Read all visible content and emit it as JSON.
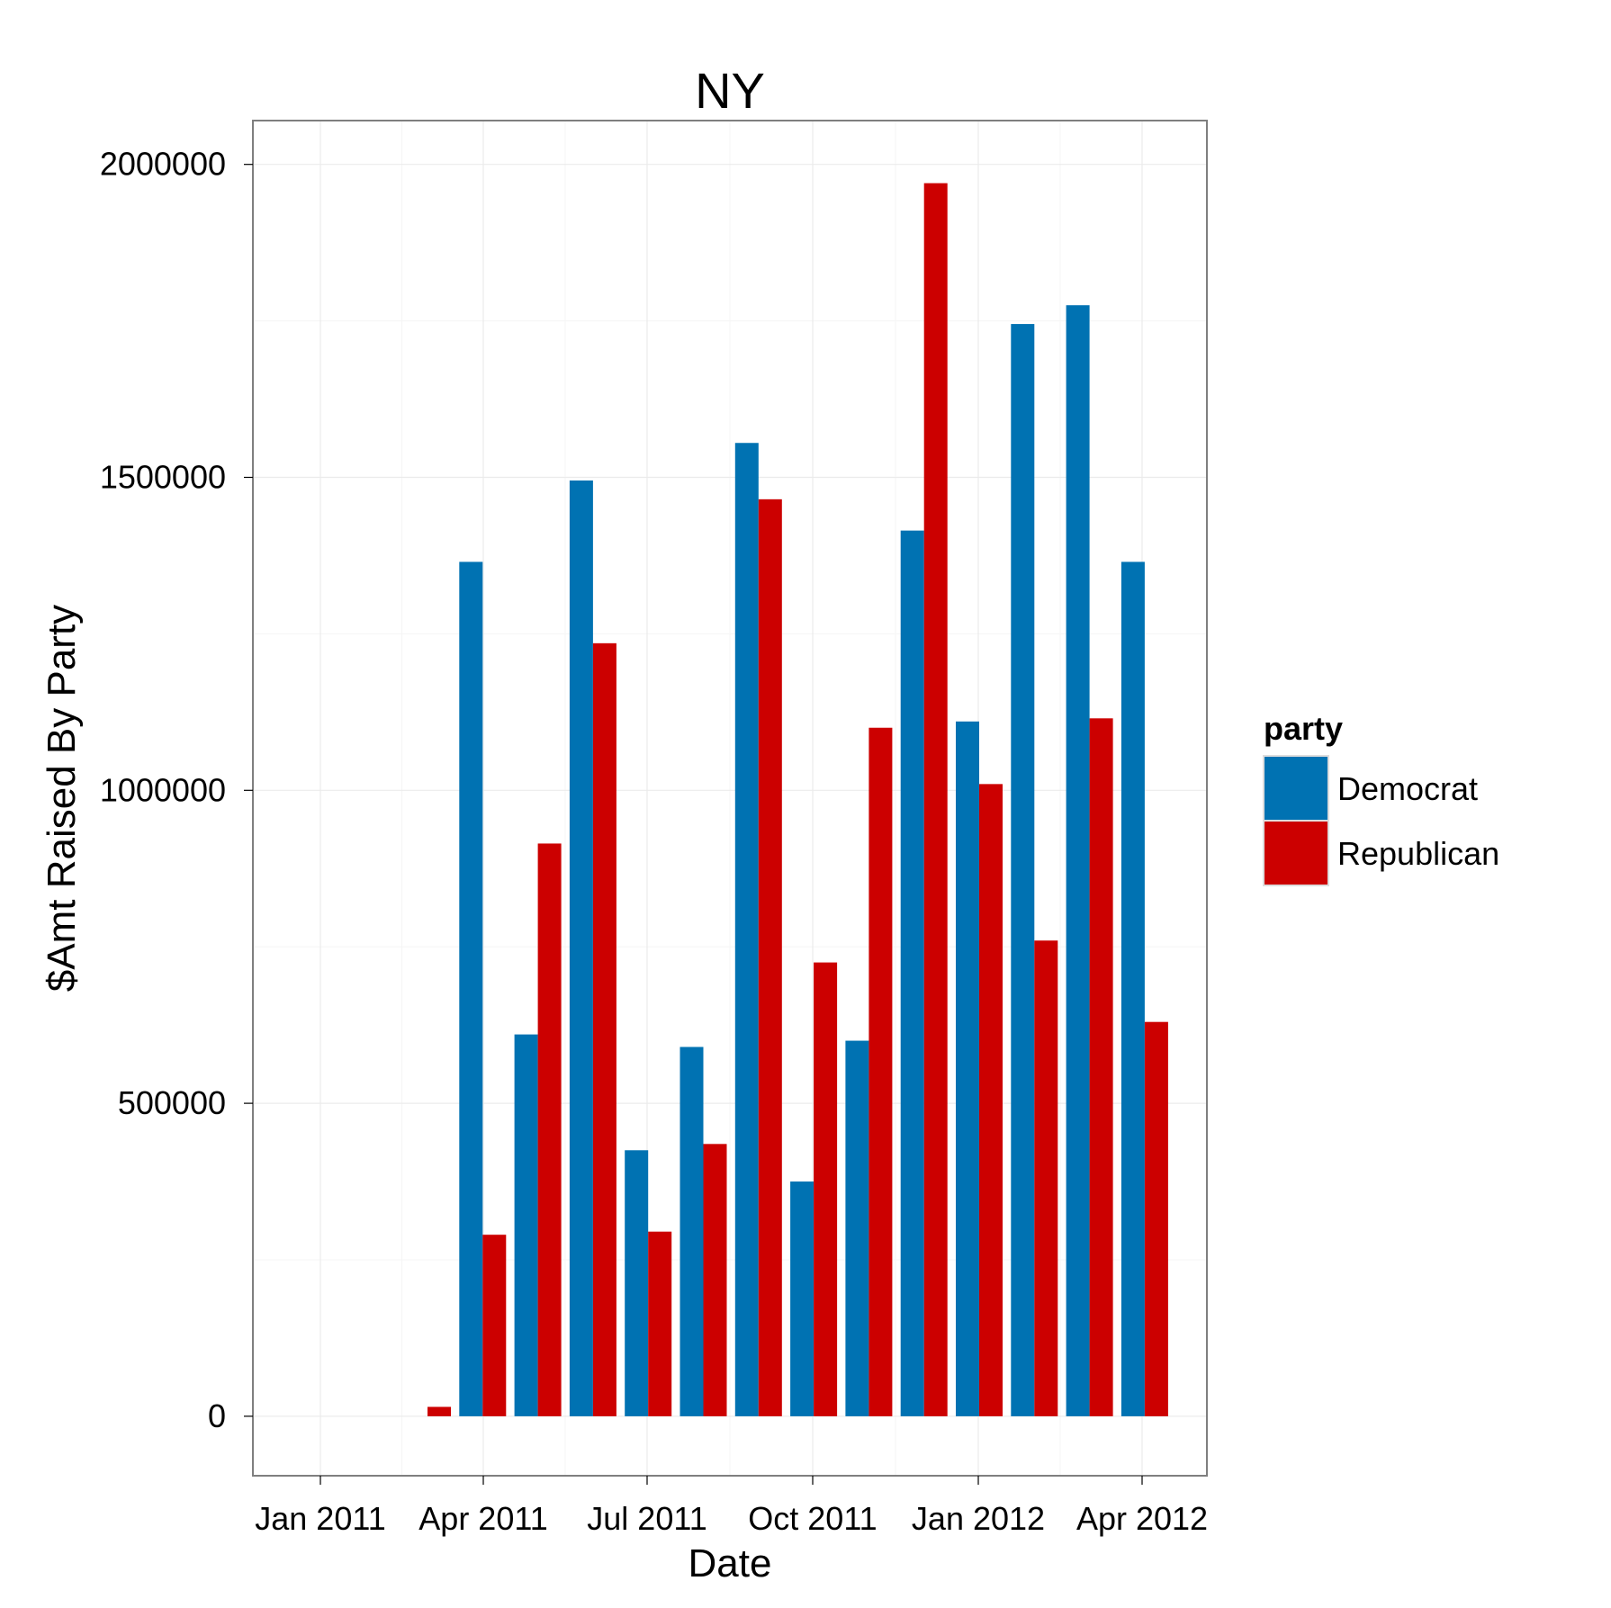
{
  "chart_data": {
    "type": "bar",
    "title": "NY",
    "xlabel": "Date",
    "ylabel": "$Amt Raised By Party",
    "x_ticks": [
      "Jan 2011",
      "Apr 2011",
      "Jul 2011",
      "Oct 2011",
      "Jan 2012",
      "Apr 2012"
    ],
    "y_ticks": [
      0,
      500000,
      1000000,
      1500000,
      2000000
    ],
    "ylim": [
      -95000,
      2070000
    ],
    "grid": true,
    "legend": {
      "title": "party",
      "position": "right"
    },
    "categories": [
      "Feb 2011",
      "Mar 2011",
      "Apr 2011",
      "May 2011",
      "Jun 2011",
      "Jul 2011",
      "Aug 2011",
      "Sep 2011",
      "Oct 2011",
      "Nov 2011",
      "Dec 2011",
      "Jan 2012",
      "Feb 2012",
      "Mar 2012",
      "Apr 2012"
    ],
    "series": [
      {
        "name": "Democrat",
        "color": "#0072b2",
        "values": [
          0,
          1365000,
          610000,
          1495000,
          425000,
          590000,
          1555000,
          375000,
          600000,
          1415000,
          1110000,
          1745000,
          1775000,
          1365000,
          0
        ]
      },
      {
        "name": "Republican",
        "color": "#cc0000",
        "values": [
          15000,
          290000,
          915000,
          1235000,
          295000,
          435000,
          1465000,
          725000,
          1100000,
          1970000,
          1010000,
          760000,
          1115000,
          630000,
          0
        ]
      }
    ]
  }
}
